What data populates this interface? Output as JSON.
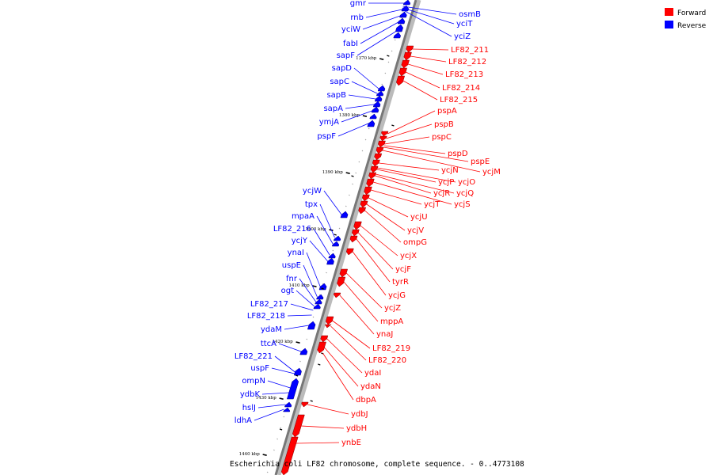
{
  "colors": {
    "forward": "#ff0000",
    "reverse": "#0000ff",
    "backbone": "#777777"
  },
  "legend": [
    {
      "key": "forward",
      "label": "Forward"
    },
    {
      "key": "reverse",
      "label": "Reverse"
    }
  ],
  "caption": "Escherichia coli LF82 chromosome, complete sequence. - 0..4773108",
  "ticks": [
    {
      "label": "1370 kbp",
      "kbp": 1370
    },
    {
      "label": "1380 kbp",
      "kbp": 1380
    },
    {
      "label": "1390 kbp",
      "kbp": 1390
    },
    {
      "label": "1400 kbp",
      "kbp": 1400
    },
    {
      "label": "1410 kbp",
      "kbp": 1410
    },
    {
      "label": "1420 kbp",
      "kbp": 1420
    },
    {
      "label": "1430 kbp",
      "kbp": 1430
    },
    {
      "label": "1440 kbp",
      "kbp": 1440
    }
  ],
  "genes": [
    {
      "name": "gmr",
      "strand": "reverse"
    },
    {
      "name": "rnb",
      "strand": "reverse"
    },
    {
      "name": "yciW",
      "strand": "reverse"
    },
    {
      "name": "fabI",
      "strand": "reverse"
    },
    {
      "name": "sapF",
      "strand": "reverse"
    },
    {
      "name": "sapD",
      "strand": "reverse"
    },
    {
      "name": "sapC",
      "strand": "reverse"
    },
    {
      "name": "sapB",
      "strand": "reverse"
    },
    {
      "name": "sapA",
      "strand": "reverse"
    },
    {
      "name": "ymjA",
      "strand": "reverse"
    },
    {
      "name": "pspF",
      "strand": "reverse"
    },
    {
      "name": "ycjW",
      "strand": "reverse"
    },
    {
      "name": "tpx",
      "strand": "reverse"
    },
    {
      "name": "mpaA",
      "strand": "reverse"
    },
    {
      "name": "LF82_216",
      "strand": "reverse"
    },
    {
      "name": "ycjY",
      "strand": "reverse"
    },
    {
      "name": "ynaI",
      "strand": "reverse"
    },
    {
      "name": "uspE",
      "strand": "reverse"
    },
    {
      "name": "fnr",
      "strand": "reverse"
    },
    {
      "name": "ogt",
      "strand": "reverse"
    },
    {
      "name": "LF82_217",
      "strand": "reverse"
    },
    {
      "name": "LF82_218",
      "strand": "reverse"
    },
    {
      "name": "ydaM",
      "strand": "reverse"
    },
    {
      "name": "ttcA",
      "strand": "reverse"
    },
    {
      "name": "LF82_221",
      "strand": "reverse"
    },
    {
      "name": "uspF",
      "strand": "reverse"
    },
    {
      "name": "ompN",
      "strand": "reverse"
    },
    {
      "name": "ydbK",
      "strand": "reverse"
    },
    {
      "name": "hslJ",
      "strand": "reverse"
    },
    {
      "name": "ldhA",
      "strand": "reverse"
    },
    {
      "name": "osmB",
      "strand": "reverse"
    },
    {
      "name": "yciT",
      "strand": "reverse"
    },
    {
      "name": "yciZ",
      "strand": "reverse"
    },
    {
      "name": "LF82_211",
      "strand": "forward"
    },
    {
      "name": "LF82_212",
      "strand": "forward"
    },
    {
      "name": "LF82_213",
      "strand": "forward"
    },
    {
      "name": "LF82_214",
      "strand": "forward"
    },
    {
      "name": "LF82_215",
      "strand": "forward"
    },
    {
      "name": "pspA",
      "strand": "forward"
    },
    {
      "name": "pspB",
      "strand": "forward"
    },
    {
      "name": "pspC",
      "strand": "forward"
    },
    {
      "name": "pspD",
      "strand": "forward"
    },
    {
      "name": "pspE",
      "strand": "forward"
    },
    {
      "name": "ycjM",
      "strand": "forward"
    },
    {
      "name": "ycjN",
      "strand": "forward"
    },
    {
      "name": "ycjP",
      "strand": "forward"
    },
    {
      "name": "ycjO",
      "strand": "forward"
    },
    {
      "name": "ycjR",
      "strand": "forward"
    },
    {
      "name": "ycjQ",
      "strand": "forward"
    },
    {
      "name": "ycjS",
      "strand": "forward"
    },
    {
      "name": "ycjT",
      "strand": "forward"
    },
    {
      "name": "ycjU",
      "strand": "forward"
    },
    {
      "name": "ycjV",
      "strand": "forward"
    },
    {
      "name": "ompG",
      "strand": "forward"
    },
    {
      "name": "ycjX",
      "strand": "forward"
    },
    {
      "name": "ycjF",
      "strand": "forward"
    },
    {
      "name": "tyrR",
      "strand": "forward"
    },
    {
      "name": "ycjG",
      "strand": "forward"
    },
    {
      "name": "ycjZ",
      "strand": "forward"
    },
    {
      "name": "mppA",
      "strand": "forward"
    },
    {
      "name": "ynaJ",
      "strand": "forward"
    },
    {
      "name": "LF82_219",
      "strand": "forward"
    },
    {
      "name": "LF82_220",
      "strand": "forward"
    },
    {
      "name": "ydaI",
      "strand": "forward"
    },
    {
      "name": "ydaN",
      "strand": "forward"
    },
    {
      "name": "dbpA",
      "strand": "forward"
    },
    {
      "name": "ydbJ",
      "strand": "forward"
    },
    {
      "name": "ydbH",
      "strand": "forward"
    },
    {
      "name": "ynbE",
      "strand": "forward"
    }
  ]
}
